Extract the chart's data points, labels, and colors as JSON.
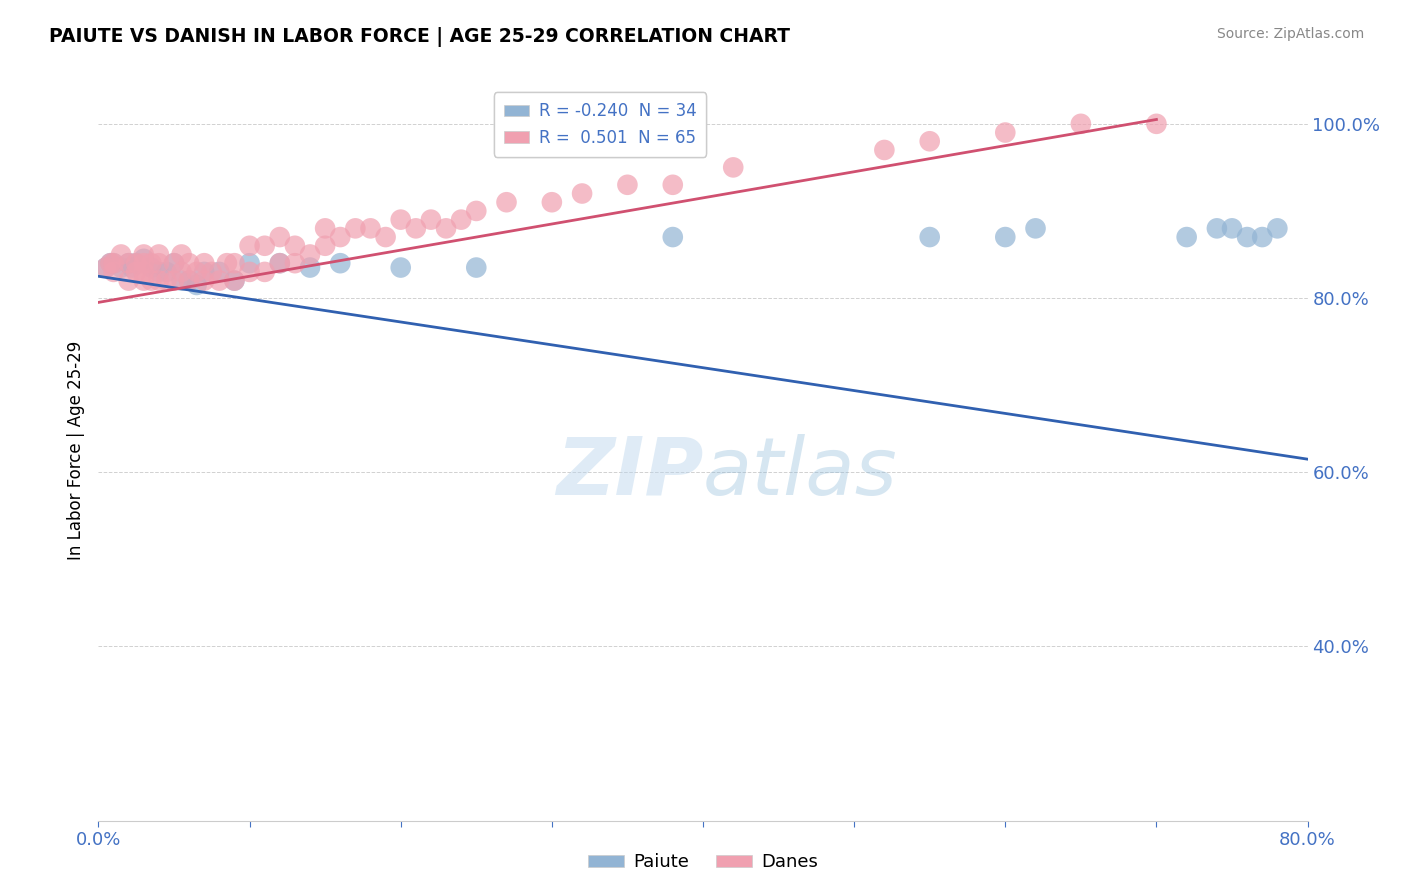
{
  "title": "PAIUTE VS DANISH IN LABOR FORCE | AGE 25-29 CORRELATION CHART",
  "source": "Source: ZipAtlas.com",
  "ylabel": "In Labor Force | Age 25-29",
  "xlim": [
    0.0,
    0.8
  ],
  "ylim": [
    0.2,
    1.05
  ],
  "yticks": [
    0.4,
    0.6,
    0.8,
    1.0
  ],
  "ytick_labels": [
    "40.0%",
    "60.0%",
    "80.0%",
    "100.0%"
  ],
  "xticks": [
    0.0,
    0.1,
    0.2,
    0.3,
    0.4,
    0.5,
    0.6,
    0.7,
    0.8
  ],
  "xtick_labels": [
    "0.0%",
    "",
    "",
    "",
    "",
    "",
    "",
    "",
    "80.0%"
  ],
  "paiute_color": "#92b4d4",
  "danes_color": "#f0a0b0",
  "paiute_line_color": "#3060b0",
  "danes_line_color": "#d05070",
  "paiute_r": -0.24,
  "paiute_n": 34,
  "danes_r": 0.501,
  "danes_n": 65,
  "watermark_zip": "ZIP",
  "watermark_atlas": "atlas",
  "paiute_x": [
    0.005,
    0.008,
    0.01,
    0.015,
    0.02,
    0.022,
    0.025,
    0.03,
    0.035,
    0.04,
    0.045,
    0.05,
    0.055,
    0.06,
    0.065,
    0.07,
    0.08,
    0.09,
    0.1,
    0.12,
    0.14,
    0.16,
    0.2,
    0.25,
    0.38,
    0.55,
    0.6,
    0.62,
    0.72,
    0.74,
    0.75,
    0.76,
    0.77,
    0.78
  ],
  "paiute_y": [
    0.835,
    0.84,
    0.84,
    0.835,
    0.84,
    0.835,
    0.84,
    0.845,
    0.835,
    0.83,
    0.83,
    0.84,
    0.82,
    0.82,
    0.815,
    0.83,
    0.83,
    0.82,
    0.84,
    0.84,
    0.835,
    0.84,
    0.835,
    0.835,
    0.87,
    0.87,
    0.87,
    0.88,
    0.87,
    0.88,
    0.88,
    0.87,
    0.87,
    0.88
  ],
  "danes_x": [
    0.005,
    0.008,
    0.01,
    0.01,
    0.015,
    0.02,
    0.02,
    0.025,
    0.025,
    0.03,
    0.03,
    0.03,
    0.03,
    0.035,
    0.035,
    0.04,
    0.04,
    0.04,
    0.045,
    0.05,
    0.05,
    0.055,
    0.055,
    0.06,
    0.06,
    0.065,
    0.07,
    0.07,
    0.075,
    0.08,
    0.085,
    0.09,
    0.09,
    0.1,
    0.1,
    0.11,
    0.11,
    0.12,
    0.12,
    0.13,
    0.13,
    0.14,
    0.15,
    0.15,
    0.16,
    0.17,
    0.18,
    0.19,
    0.2,
    0.21,
    0.22,
    0.23,
    0.24,
    0.25,
    0.27,
    0.3,
    0.32,
    0.35,
    0.38,
    0.42,
    0.52,
    0.55,
    0.6,
    0.65,
    0.7
  ],
  "danes_y": [
    0.835,
    0.84,
    0.83,
    0.84,
    0.85,
    0.82,
    0.84,
    0.83,
    0.84,
    0.82,
    0.83,
    0.84,
    0.85,
    0.82,
    0.84,
    0.82,
    0.84,
    0.85,
    0.82,
    0.82,
    0.84,
    0.83,
    0.85,
    0.82,
    0.84,
    0.83,
    0.82,
    0.84,
    0.83,
    0.82,
    0.84,
    0.82,
    0.84,
    0.83,
    0.86,
    0.83,
    0.86,
    0.84,
    0.87,
    0.84,
    0.86,
    0.85,
    0.86,
    0.88,
    0.87,
    0.88,
    0.88,
    0.87,
    0.89,
    0.88,
    0.89,
    0.88,
    0.89,
    0.9,
    0.91,
    0.91,
    0.92,
    0.93,
    0.93,
    0.95,
    0.97,
    0.98,
    0.99,
    1.0,
    1.0
  ],
  "paiute_line_x0": 0.0,
  "paiute_line_y0": 0.825,
  "paiute_line_x1": 0.8,
  "paiute_line_y1": 0.615,
  "danes_line_x0": 0.0,
  "danes_line_y0": 0.795,
  "danes_line_x1": 0.7,
  "danes_line_y1": 1.005
}
